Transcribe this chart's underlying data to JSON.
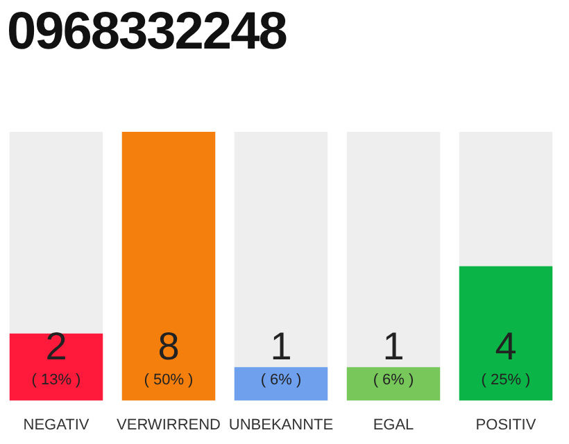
{
  "chart_data": {
    "type": "bar",
    "title": "0968332248",
    "categories": [
      "NEGATIV",
      "VERWIRREND",
      "UNBEKANNTE",
      "EGAL",
      "POSITIV"
    ],
    "values": [
      2,
      8,
      1,
      1,
      4
    ],
    "colors": [
      "#ff1a3c",
      "#f57f0c",
      "#6ea0ee",
      "#77c75b",
      "#0ab446"
    ],
    "value_labels": [
      "2\n( 13% )",
      "8\n( 50% )",
      "1\n( 6% )",
      "1\n( 6% )",
      "4\n( 25% )"
    ],
    "grid": false,
    "legend": false,
    "tick_labels": "x"
  }
}
